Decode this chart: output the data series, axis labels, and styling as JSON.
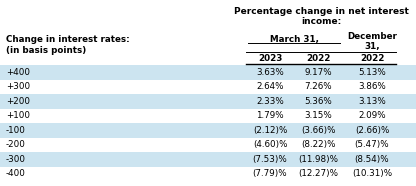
{
  "title_line1": "Percentage change in net interest",
  "title_line2": "income:",
  "col_header_march": "March 31,",
  "col_header_dec1": "December",
  "col_header_dec2": "31,",
  "col_sub_headers": [
    "2023",
    "2022",
    "2022"
  ],
  "left_header_line1": "Change in interest rates:",
  "left_header_line2": "(in basis points)",
  "rows": [
    [
      "+400",
      "3.63%",
      "9.17%",
      "5.13%"
    ],
    [
      "+300",
      "2.64%",
      "7.26%",
      "3.86%"
    ],
    [
      "+200",
      "2.33%",
      "5.36%",
      "3.13%"
    ],
    [
      "+100",
      "1.79%",
      "3.15%",
      "2.09%"
    ],
    [
      "-100",
      "(2.12)%",
      "(3.66)%",
      "(2.66)%"
    ],
    [
      "-200",
      "(4.60)%",
      "(8.22)%",
      "(5.47)%"
    ],
    [
      "-300",
      "(7.53)%",
      "(11.98)%",
      "(8.54)%"
    ],
    [
      "-400",
      "(7.79)%",
      "(12.27)%",
      "(10.31)%"
    ]
  ],
  "shaded_rows": [
    0,
    2,
    4,
    6
  ],
  "shade_color": "#cce4f0",
  "bg_color": "#ffffff",
  "text_color": "#000000",
  "line_color": "#000000",
  "font_size": 6.3,
  "bold_font_size": 6.3,
  "title_font_size": 6.5,
  "figw": 4.16,
  "figh": 1.86,
  "dpi": 100
}
